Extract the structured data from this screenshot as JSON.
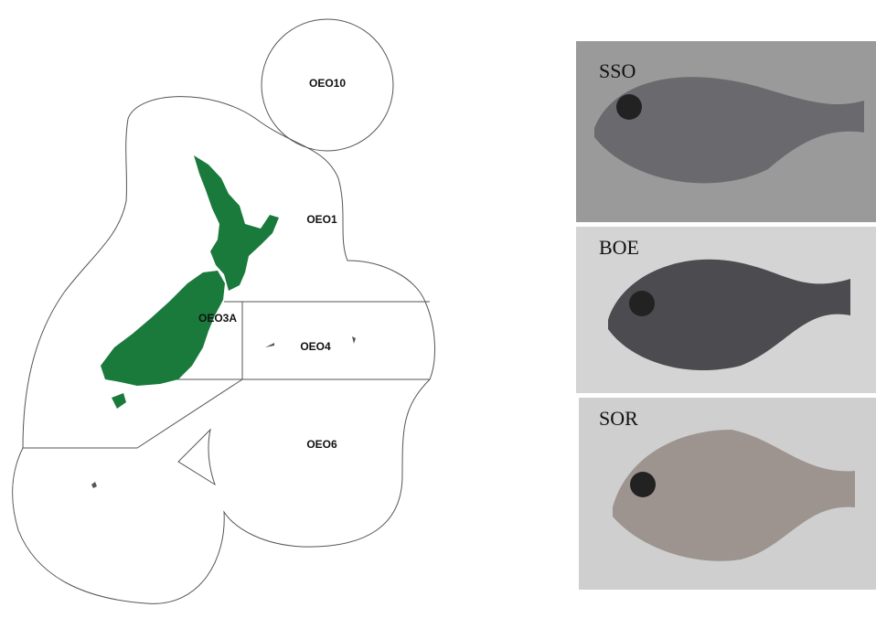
{
  "map": {
    "regions": [
      {
        "label": "OEO10"
      },
      {
        "label": "OEO1"
      },
      {
        "label": "OEO3A"
      },
      {
        "label": "OEO4"
      },
      {
        "label": "OEO6"
      }
    ]
  },
  "photos": [
    {
      "label": "SSO"
    },
    {
      "label": "BOE"
    },
    {
      "label": "SOR"
    }
  ]
}
